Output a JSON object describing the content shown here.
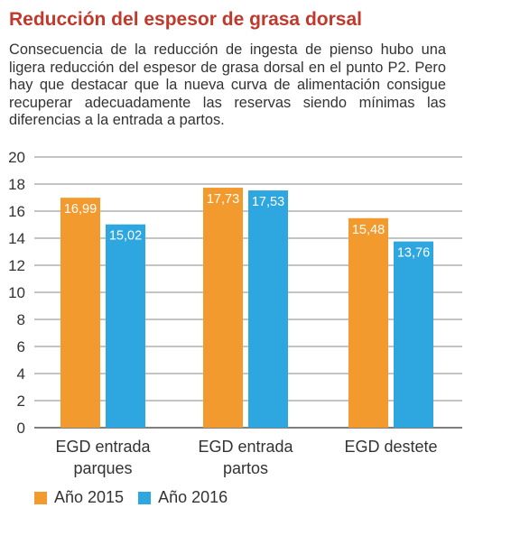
{
  "header": {
    "title": "Reducción del espesor de grasa dorsal",
    "description": "Consecuencia de la reducción de ingesta de pienso hubo una ligera reducción del espesor de grasa dorsal en el punto P2. Pero hay que destacar que la nueva curva de alimentación consigue recuperar adecuadamente las reservas siendo mínimas las diferencias a la entrada a partos."
  },
  "chart_data": {
    "type": "bar",
    "categories": [
      [
        "EGD entrada",
        "parques"
      ],
      [
        "EGD entrada",
        "partos"
      ],
      [
        "EGD destete"
      ]
    ],
    "series": [
      {
        "name": "Año 2015",
        "color": "#f39a2e",
        "values": [
          16.99,
          17.73,
          15.48
        ],
        "labels": [
          "16,99",
          "17,73",
          "15,48"
        ]
      },
      {
        "name": "Año 2016",
        "color": "#2ea6e0",
        "values": [
          15.02,
          17.53,
          13.76
        ],
        "labels": [
          "15,02",
          "17,53",
          "13,76"
        ]
      }
    ],
    "ylim": [
      0,
      20
    ],
    "yticks": [
      0,
      2,
      4,
      6,
      8,
      10,
      12,
      14,
      16,
      18,
      20
    ],
    "grid": true,
    "legend_position": "bottom-left"
  }
}
